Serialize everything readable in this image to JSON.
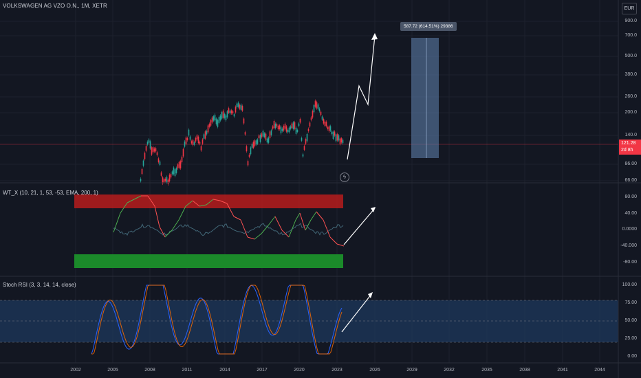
{
  "chart": {
    "title": "VOLKSWAGEN AG VZO O.N., 1M, XETR",
    "currency": "EUR",
    "price_badge_value": "121.28",
    "price_badge_time": "2d 8h",
    "measure_label": "587.72 (614.51%) 29386",
    "price_axis": [
      "900.0",
      "700.0",
      "500.0",
      "380.0",
      "260.0",
      "200.0",
      "140.0",
      "86.00",
      "66.00"
    ],
    "time_axis": [
      "2002",
      "2005",
      "2008",
      "2011",
      "2014",
      "2017",
      "2020",
      "2023",
      "2026",
      "2029",
      "2032",
      "2035",
      "2038",
      "2041",
      "2044"
    ]
  },
  "wt": {
    "label": "WT_X (10, 21, 1, 53, -53, EMA, 200, 1)",
    "axis": [
      "80.00",
      "40.00",
      "0.0000",
      "-40.000",
      "-80.00"
    ]
  },
  "stoch": {
    "label": "Stoch RSI (3, 3, 14, 14, close)",
    "axis": [
      "100.00",
      "75.00",
      "50.00",
      "25.00",
      "0.00"
    ]
  },
  "colors": {
    "bg": "#131722",
    "up": "#26a69a",
    "down": "#f23645",
    "wt_green": "#4caf50",
    "wt_red": "#ff5252",
    "stoch_k": "#2962ff",
    "stoch_d": "#ff6d00",
    "overbought_band": "#b71c1c",
    "oversold_band": "#1b8a2a",
    "stoch_band": "#1e3a5f"
  },
  "icons": {
    "flash": "lightning-icon"
  }
}
